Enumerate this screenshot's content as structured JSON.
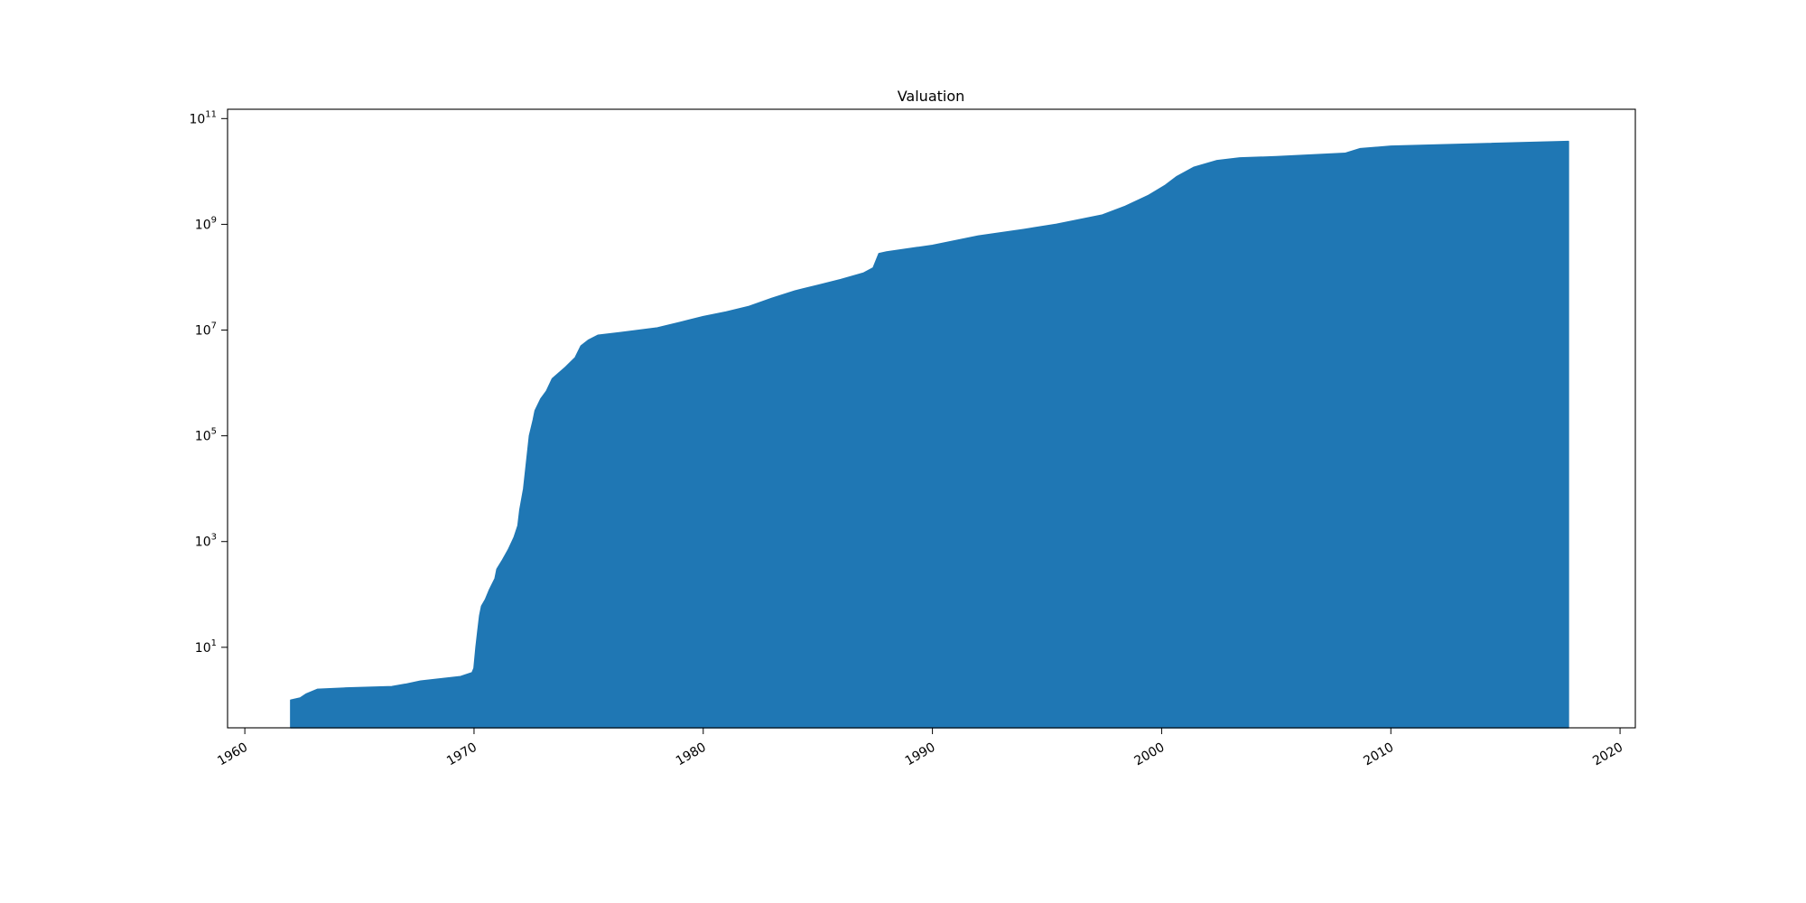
{
  "chart_data": {
    "type": "area",
    "title": "Valuation",
    "xlabel": "",
    "ylabel": "",
    "x_axis_type": "date",
    "y_scale": "log",
    "grid": false,
    "legend": "none",
    "xlim": [
      "1959-04-01",
      "2020-09-01"
    ],
    "ylim": [
      0.3,
      150000000000
    ],
    "x_ticks": [
      "1960",
      "1970",
      "1980",
      "1990",
      "2000",
      "2010",
      "2020"
    ],
    "y_ticks": [
      {
        "value": 10,
        "base": "10",
        "exp": "1"
      },
      {
        "value": 1000,
        "base": "10",
        "exp": "3"
      },
      {
        "value": 100000,
        "base": "10",
        "exp": "5"
      },
      {
        "value": 10000000,
        "base": "10",
        "exp": "7"
      },
      {
        "value": 1000000000,
        "base": "10",
        "exp": "9"
      },
      {
        "value": 100000000000,
        "base": "10",
        "exp": "11"
      }
    ],
    "colors": {
      "fill": "#1f77b4"
    },
    "series": [
      {
        "x": [
          "1962-01-01",
          "1962-06-01",
          "1962-09-01",
          "1963-03-01",
          "1964-06-01",
          "1966-06-01",
          "1967-01-01",
          "1967-09-01",
          "1969-06-01",
          "1969-12-01",
          "1970-01-01",
          "1970-02-01",
          "1970-03-01",
          "1970-04-01",
          "1970-05-01",
          "1970-07-01",
          "1970-09-01",
          "1970-12-01",
          "1971-01-01",
          "1971-04-01",
          "1971-07-01",
          "1971-10-01",
          "1971-12-01",
          "1972-01-01",
          "1972-03-01",
          "1972-06-01",
          "1972-08-01",
          "1972-09-01",
          "1972-12-01",
          "1973-03-01",
          "1973-06-01",
          "1974-01-01",
          "1974-06-01",
          "1974-09-01",
          "1975-01-01",
          "1975-06-01",
          "1976-06-01",
          "1978-01-01",
          "1979-01-01",
          "1980-01-01",
          "1981-01-01",
          "1982-01-01",
          "1983-01-01",
          "1984-01-01",
          "1985-01-01",
          "1986-01-01",
          "1987-01-01",
          "1987-06-01",
          "1987-09-01",
          "1988-01-01",
          "1990-01-01",
          "1992-01-01",
          "1994-01-01",
          "1995-06-01",
          "1997-06-01",
          "1998-06-01",
          "1999-06-01",
          "2000-03-01",
          "2000-09-01",
          "2001-06-01",
          "2002-06-01",
          "2003-06-01",
          "2005-01-01",
          "2008-01-01",
          "2008-09-01",
          "2010-01-01",
          "2017-10-01"
        ],
        "y": [
          1,
          1.1,
          1.3,
          1.6,
          1.7,
          1.8,
          2.0,
          2.3,
          2.8,
          3.3,
          4,
          10,
          20,
          40,
          60,
          80,
          120,
          200,
          300,
          450,
          700,
          1200,
          2000,
          4000,
          10000,
          100000,
          200000,
          300000,
          500000,
          700000,
          1200000,
          2000000,
          3000000,
          5000000,
          6500000,
          8000000,
          9000000,
          11000000,
          14000000,
          18000000,
          22000000,
          28000000,
          40000000,
          55000000,
          70000000,
          90000000,
          120000000,
          150000000,
          280000000,
          300000000,
          400000000,
          600000000,
          800000000,
          1000000000,
          1500000000,
          2200000000,
          3500000000,
          5500000000,
          8000000000,
          12000000000,
          16000000000,
          18000000000,
          19000000000,
          22000000000,
          27000000000,
          30000000000,
          37000000000
        ]
      }
    ]
  }
}
